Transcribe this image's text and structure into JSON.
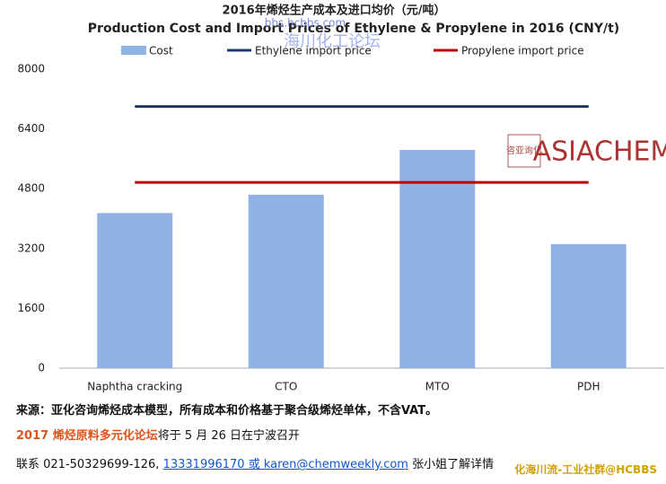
{
  "chart_data": {
    "type": "bar",
    "title": "2016年烯烃生产成本及进口均价（元/吨）",
    "subtitle": "Production Cost and Import Prices of Ethylene & Propylene in 2016 (CNY/t)",
    "categories": [
      "Naphtha cracking",
      "CTO",
      "MTO",
      "PDH"
    ],
    "series": [
      {
        "name": "Cost",
        "type": "bar",
        "color": "#8fb3e2",
        "values": [
          4150,
          4640,
          5840,
          3320
        ]
      },
      {
        "name": "Ethylene import price",
        "type": "line",
        "color": "#1f3864",
        "values": [
          7000,
          7000,
          7000,
          7000
        ]
      },
      {
        "name": "Propylene import price",
        "type": "line",
        "color": "#c00000",
        "values": [
          4970,
          4970,
          4970,
          4970
        ]
      }
    ],
    "ylim": [
      0,
      8000
    ],
    "yticks": [
      0,
      1600,
      3200,
      4800,
      6400,
      8000
    ],
    "grid": false,
    "legend": "top"
  },
  "watermarks": [
    "bbs.hcbbs.com",
    "海川化工论坛",
    "化海川流-工业社群@HCBBS"
  ],
  "logo": {
    "chinese": "咨亚询化",
    "text": "ASIACHEM"
  },
  "source": "来源：亚化咨询烯烃成本模型，所有成本和价格基于聚合级烯烃单体，不含VAT。",
  "forum": {
    "name": "2017 烯烃原料多元化论坛",
    "text": "将于 5 月 26 日在宁波召开"
  },
  "contact": {
    "prefix": "联系 021-50329699-126,",
    "link": "13331996170 或 karen@chemweekly.com",
    "suffix": "张小姐了解详情"
  }
}
